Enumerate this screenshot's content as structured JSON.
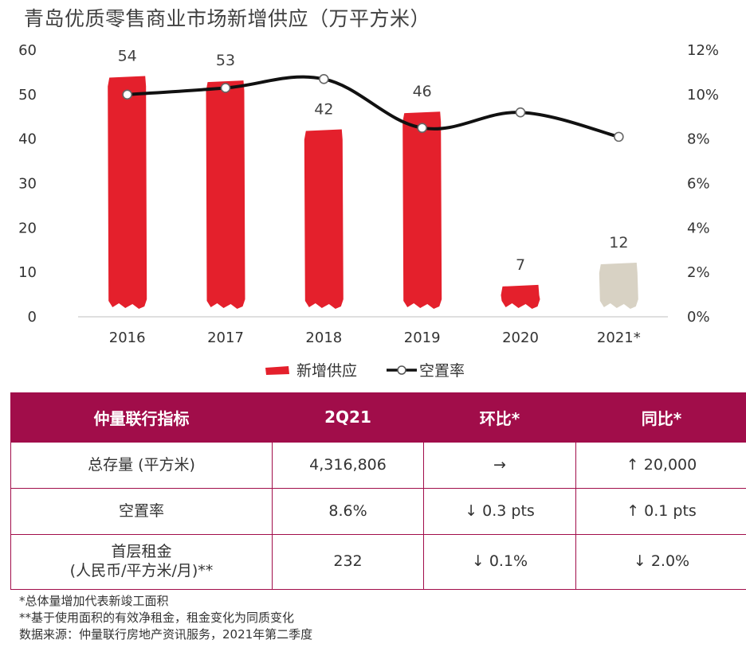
{
  "title": "青岛优质零售商业市场新增供应（万平方米）",
  "chart_data": {
    "type": "bar",
    "categories": [
      "2016",
      "2017",
      "2018",
      "2019",
      "2020",
      "2021*"
    ],
    "series": [
      {
        "name": "新增供应",
        "type": "bar",
        "axis": "left",
        "values": [
          54,
          53,
          42,
          46,
          7,
          12
        ],
        "labels": [
          "54",
          "53",
          "42",
          "46",
          "7",
          "12"
        ],
        "colors": [
          "#e4202c",
          "#e4202c",
          "#e4202c",
          "#e4202c",
          "#e4202c",
          "#d8d2c4"
        ]
      },
      {
        "name": "空置率",
        "type": "line",
        "axis": "right",
        "values": [
          10.0,
          10.3,
          10.7,
          8.5,
          9.2,
          8.1
        ]
      }
    ],
    "y_left": {
      "min": 0,
      "max": 60,
      "ticks": [
        "0",
        "10",
        "20",
        "30",
        "40",
        "50",
        "60"
      ]
    },
    "y_right": {
      "min": 0,
      "max": 12,
      "ticks": [
        "0%",
        "2%",
        "4%",
        "6%",
        "8%",
        "10%",
        "12%"
      ]
    },
    "grid": false,
    "legend_position": "bottom"
  },
  "legend": {
    "bar_label": "新增供应",
    "line_label": "空置率"
  },
  "colors": {
    "bar": "#e4202c",
    "bar_forecast": "#d8d2c4",
    "line": "#111111",
    "header": "#a10d4a"
  },
  "table": {
    "headers": [
      "仲量联行指标",
      "2Q21",
      "环比*",
      "同比*"
    ],
    "rows": [
      [
        "总存量 (平方米)",
        "4,316,806",
        "→",
        "↑  20,000"
      ],
      [
        "空置率",
        "8.6%",
        "↓  0.3 pts",
        "↑  0.1 pts"
      ],
      [
        "首层租金\n(人民币/平方米/月)**",
        "232",
        "↓  0.1%",
        "↓  2.0%"
      ]
    ]
  },
  "notes": [
    "*总体量增加代表新竣工面积",
    "**基于使用面积的有效净租金，租金变化为同质变化",
    "数据来源：仲量联行房地产资讯服务，2021年第二季度"
  ]
}
